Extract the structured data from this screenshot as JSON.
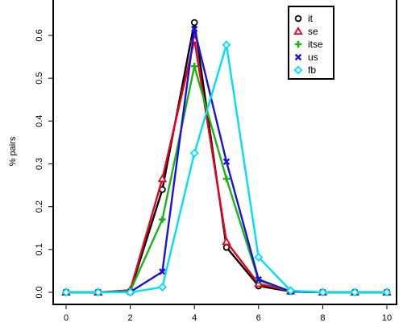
{
  "chart_data": {
    "type": "line",
    "title": "",
    "xlabel": "",
    "ylabel": "% pairs",
    "xlim": [
      0,
      10
    ],
    "ylim": [
      0,
      0.63
    ],
    "x_ticks": [
      0,
      2,
      4,
      6,
      8,
      10
    ],
    "y_ticks": [
      0.0,
      0.1,
      0.2,
      0.3,
      0.4,
      0.5,
      0.6
    ],
    "y_tick_labels": [
      "0.0",
      "0.1",
      "0.2",
      "0.3",
      "0.4",
      "0.5",
      "0.6"
    ],
    "grid": false,
    "legend_position": "top-right",
    "x": [
      0,
      1,
      2,
      3,
      4,
      5,
      6,
      7,
      8,
      9,
      10
    ],
    "series": [
      {
        "name": "it",
        "color": "#000000",
        "marker": "circle",
        "values": [
          0,
          0,
          0.002,
          0.24,
          0.63,
          0.105,
          0.015,
          0.002,
          0,
          0,
          0
        ]
      },
      {
        "name": "se",
        "color": "#e8001c",
        "marker": "triangle",
        "values": [
          0,
          0,
          0.005,
          0.265,
          0.59,
          0.118,
          0.02,
          0.003,
          0,
          0,
          0
        ]
      },
      {
        "name": "itse",
        "color": "#18b418",
        "marker": "plus",
        "values": [
          0,
          0,
          0.003,
          0.17,
          0.528,
          0.265,
          0.028,
          0.002,
          0,
          0,
          0
        ]
      },
      {
        "name": "us",
        "color": "#1a10e0",
        "marker": "cross",
        "values": [
          0,
          0,
          0.001,
          0.048,
          0.615,
          0.305,
          0.03,
          0.002,
          0,
          0,
          0
        ]
      },
      {
        "name": "fb",
        "color": "#00e0f0",
        "marker": "diamond",
        "values": [
          0,
          0,
          0.0,
          0.012,
          0.325,
          0.578,
          0.082,
          0.004,
          0,
          0,
          0
        ]
      }
    ]
  }
}
